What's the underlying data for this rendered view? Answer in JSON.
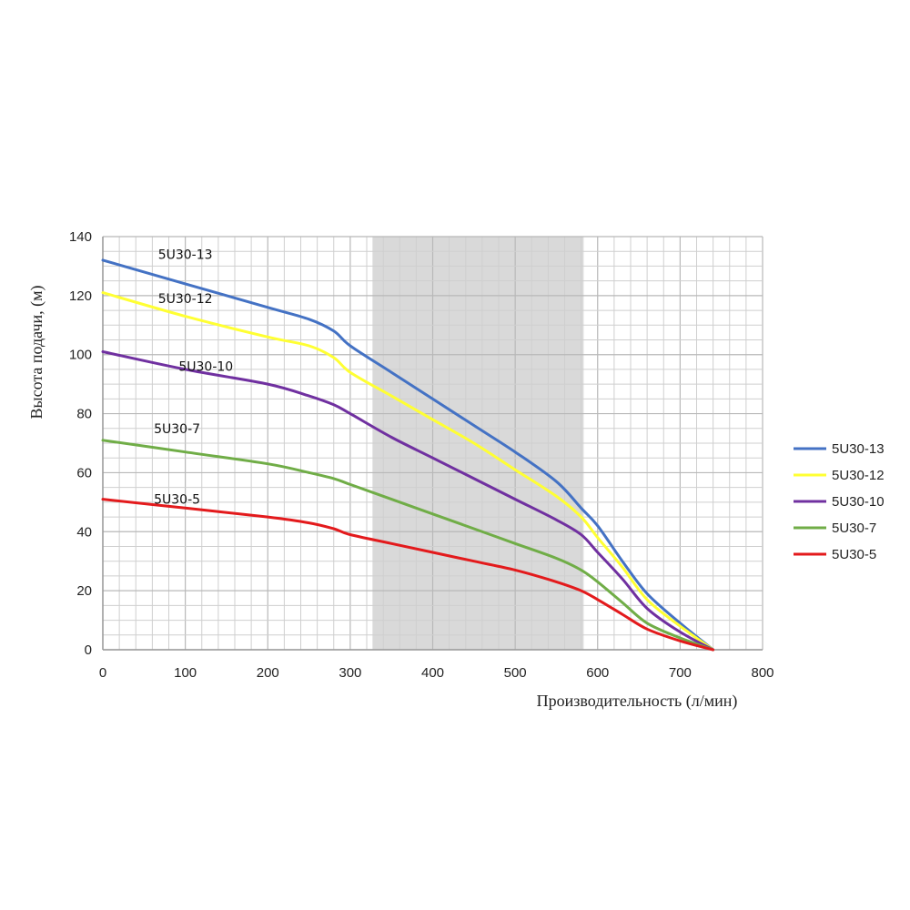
{
  "chart_data": {
    "type": "line",
    "title": "",
    "xlabel": "Производительность (л/мин)",
    "ylabel": "Высота подачи, (м)",
    "xlim": [
      0,
      800
    ],
    "ylim": [
      0,
      140
    ],
    "x_ticks": [
      "0",
      "100",
      "200",
      "300",
      "400",
      "500",
      "600",
      "700",
      "800"
    ],
    "y_ticks": [
      "0",
      "20",
      "40",
      "60",
      "80",
      "100",
      "120",
      "140"
    ],
    "grid": true,
    "legend_position": "right",
    "shaded_region": {
      "x_start": 327,
      "x_end": 583,
      "color": "#d9d9d9"
    },
    "series": [
      {
        "name": "5U30-13",
        "color": "#4472c4",
        "points": [
          [
            0,
            132
          ],
          [
            100,
            124
          ],
          [
            200,
            116
          ],
          [
            250,
            112
          ],
          [
            280,
            108
          ],
          [
            300,
            103
          ],
          [
            350,
            94
          ],
          [
            400,
            85
          ],
          [
            450,
            76
          ],
          [
            500,
            67
          ],
          [
            550,
            57
          ],
          [
            580,
            48
          ],
          [
            600,
            42
          ],
          [
            630,
            30
          ],
          [
            660,
            19
          ],
          [
            700,
            9
          ],
          [
            740,
            0
          ]
        ]
      },
      {
        "name": "5U30-12",
        "color": "#ffff33",
        "points": [
          [
            0,
            121
          ],
          [
            100,
            113
          ],
          [
            200,
            106
          ],
          [
            250,
            103
          ],
          [
            280,
            99
          ],
          [
            300,
            94
          ],
          [
            350,
            86
          ],
          [
            400,
            78
          ],
          [
            450,
            70
          ],
          [
            500,
            61
          ],
          [
            550,
            52
          ],
          [
            580,
            45
          ],
          [
            600,
            38
          ],
          [
            630,
            28
          ],
          [
            660,
            17
          ],
          [
            700,
            8
          ],
          [
            740,
            0
          ]
        ]
      },
      {
        "name": "5U30-10",
        "color": "#7030a0",
        "points": [
          [
            0,
            101
          ],
          [
            100,
            95
          ],
          [
            200,
            90
          ],
          [
            250,
            86
          ],
          [
            280,
            83
          ],
          [
            300,
            80
          ],
          [
            350,
            72
          ],
          [
            400,
            65
          ],
          [
            450,
            58
          ],
          [
            500,
            51
          ],
          [
            550,
            44
          ],
          [
            580,
            39
          ],
          [
            600,
            33
          ],
          [
            630,
            24
          ],
          [
            660,
            14
          ],
          [
            700,
            6
          ],
          [
            740,
            0
          ]
        ]
      },
      {
        "name": "5U30-7",
        "color": "#70ad47",
        "points": [
          [
            0,
            71
          ],
          [
            100,
            67
          ],
          [
            200,
            63
          ],
          [
            250,
            60
          ],
          [
            280,
            58
          ],
          [
            300,
            56
          ],
          [
            350,
            51
          ],
          [
            400,
            46
          ],
          [
            450,
            41
          ],
          [
            500,
            36
          ],
          [
            550,
            31
          ],
          [
            580,
            27
          ],
          [
            600,
            23
          ],
          [
            630,
            16
          ],
          [
            660,
            9
          ],
          [
            700,
            4
          ],
          [
            740,
            0
          ]
        ]
      },
      {
        "name": "5U30-5",
        "color": "#e31a1c",
        "points": [
          [
            0,
            51
          ],
          [
            100,
            48
          ],
          [
            200,
            45
          ],
          [
            250,
            43
          ],
          [
            280,
            41
          ],
          [
            300,
            39
          ],
          [
            350,
            36
          ],
          [
            400,
            33
          ],
          [
            450,
            30
          ],
          [
            500,
            27
          ],
          [
            550,
            23
          ],
          [
            580,
            20
          ],
          [
            600,
            17
          ],
          [
            630,
            12
          ],
          [
            660,
            7
          ],
          [
            700,
            3
          ],
          [
            740,
            0
          ]
        ]
      }
    ],
    "curve_labels": [
      {
        "text": "5U30-13",
        "x": 100,
        "y": 134
      },
      {
        "text": "5U30-12",
        "x": 100,
        "y": 119
      },
      {
        "text": "5U30-10",
        "x": 125,
        "y": 96
      },
      {
        "text": "5U30-7",
        "x": 90,
        "y": 75
      },
      {
        "text": "5U30-5",
        "x": 90,
        "y": 51
      }
    ]
  }
}
